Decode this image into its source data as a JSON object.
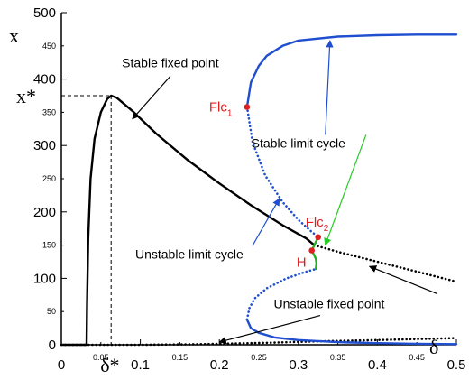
{
  "chart_data": {
    "type": "line",
    "title": "",
    "xlabel": "δ",
    "ylabel": "x",
    "xlim": [
      0,
      0.5
    ],
    "ylim": [
      0,
      500
    ],
    "x_ticks_major": [
      "0",
      "0.1",
      "0.2",
      "0.3",
      "0.4",
      "0.5"
    ],
    "x_ticks_minor": [
      "0.05",
      "0.15",
      "0.25",
      "0.35",
      "0.45"
    ],
    "y_ticks_major": [
      "0",
      "100",
      "200",
      "300",
      "400",
      "500"
    ],
    "y_ticks_minor": [
      "50",
      "150",
      "250",
      "350",
      "450"
    ],
    "x_star_label": "δ*",
    "y_star_label": "x*",
    "x_star_value": 0.063,
    "y_star_value": 375,
    "series": [
      {
        "name": "Stable fixed point",
        "style": "solid",
        "color": "#000000",
        "points": [
          [
            0,
            0
          ],
          [
            0.032,
            0
          ],
          [
            0.0325,
            60
          ],
          [
            0.034,
            160
          ],
          [
            0.037,
            250
          ],
          [
            0.042,
            310
          ],
          [
            0.05,
            350
          ],
          [
            0.058,
            370
          ],
          [
            0.063,
            375
          ],
          [
            0.07,
            372
          ],
          [
            0.09,
            352
          ],
          [
            0.12,
            318
          ],
          [
            0.16,
            278
          ],
          [
            0.2,
            243
          ],
          [
            0.24,
            210
          ],
          [
            0.28,
            180
          ],
          [
            0.31,
            160
          ],
          [
            0.32,
            150
          ]
        ]
      },
      {
        "name": "Unstable fixed point",
        "style": "dotted",
        "color": "#000000",
        "points": [
          [
            0,
            0
          ],
          [
            0.1,
            0
          ],
          [
            0.18,
            1
          ],
          [
            0.26,
            3
          ],
          [
            0.32,
            5
          ],
          [
            0.4,
            7
          ],
          [
            0.5,
            10
          ]
        ]
      },
      {
        "name": "Unstable fixed point",
        "style": "dotted",
        "color": "#000000",
        "points": [
          [
            0.32,
            150
          ],
          [
            0.35,
            140
          ],
          [
            0.4,
            125
          ],
          [
            0.45,
            110
          ],
          [
            0.5,
            95
          ]
        ]
      },
      {
        "name": "Stable limit cycle",
        "style": "solid",
        "color": "#1f4fd0",
        "points": [
          [
            0.235,
            358
          ],
          [
            0.24,
            395
          ],
          [
            0.25,
            420
          ],
          [
            0.26,
            435
          ],
          [
            0.28,
            450
          ],
          [
            0.3,
            458
          ],
          [
            0.35,
            464
          ],
          [
            0.4,
            466
          ],
          [
            0.45,
            467
          ],
          [
            0.5,
            467
          ]
        ]
      },
      {
        "name": "Stable limit cycle",
        "style": "solid",
        "color": "#1f4fd0",
        "points": [
          [
            0.235,
            38
          ],
          [
            0.24,
            25
          ],
          [
            0.25,
            18
          ],
          [
            0.27,
            11
          ],
          [
            0.3,
            7
          ],
          [
            0.35,
            4
          ],
          [
            0.4,
            2.5
          ],
          [
            0.45,
            1.5
          ],
          [
            0.5,
            1
          ]
        ]
      },
      {
        "name": "Unstable limit cycle",
        "style": "dotted",
        "color": "#1f4fd0",
        "points": [
          [
            0.235,
            358
          ],
          [
            0.242,
            305
          ],
          [
            0.258,
            255
          ],
          [
            0.28,
            215
          ],
          [
            0.3,
            188
          ],
          [
            0.315,
            172
          ],
          [
            0.325,
            162
          ]
        ]
      },
      {
        "name": "Unstable limit cycle",
        "style": "dotted",
        "color": "#1f4fd0",
        "points": [
          [
            0.235,
            38
          ],
          [
            0.238,
            55
          ],
          [
            0.245,
            70
          ],
          [
            0.26,
            85
          ],
          [
            0.285,
            100
          ],
          [
            0.31,
            110
          ],
          [
            0.322,
            114
          ]
        ]
      },
      {
        "name": "",
        "style": "solid",
        "color": "#22b022",
        "points": [
          [
            0.317,
            142
          ],
          [
            0.321,
            152
          ],
          [
            0.325,
            162
          ]
        ]
      },
      {
        "name": "",
        "style": "solid",
        "color": "#22b022",
        "points": [
          [
            0.317,
            142
          ],
          [
            0.322,
            130
          ],
          [
            0.323,
            122
          ],
          [
            0.322,
            114
          ]
        ]
      }
    ],
    "special_points": [
      {
        "label": "Flc1",
        "x": 0.235,
        "y": 358,
        "color": "#e02020"
      },
      {
        "label": "Flc2",
        "x": 0.325,
        "y": 162,
        "color": "#e02020"
      },
      {
        "label": "H",
        "x": 0.317,
        "y": 142,
        "color": "#e02020"
      }
    ],
    "annotations": [
      {
        "text": "Stable fixed point",
        "x": 0.138,
        "y": 418,
        "arrow_to": [
          0.09,
          340
        ],
        "arrow_color": "#000000"
      },
      {
        "text": "Stable limit cycle",
        "x": 0.3,
        "y": 297,
        "arrow_to": [
          0.34,
          458
        ],
        "arrow_color": "#1f4fd0"
      },
      {
        "text": "Stable limit cycle",
        "x": 0.3,
        "y": 297,
        "arrow_to": [
          0.334,
          150
        ],
        "arrow_color": "#22cc22"
      },
      {
        "text": "Unstable limit cycle",
        "x": 0.162,
        "y": 130,
        "arrow_to": [
          0.276,
          220
        ],
        "arrow_color": "#1f4fd0"
      },
      {
        "text": "Unstable fixed point",
        "x": 0.339,
        "y": 55,
        "arrow_to": [
          0.39,
          118
        ],
        "arrow_color": "#000000"
      },
      {
        "text": "Unstable fixed point",
        "x": 0.339,
        "y": 55,
        "arrow_to": [
          0.2,
          4
        ],
        "arrow_color": "#000000"
      }
    ]
  }
}
